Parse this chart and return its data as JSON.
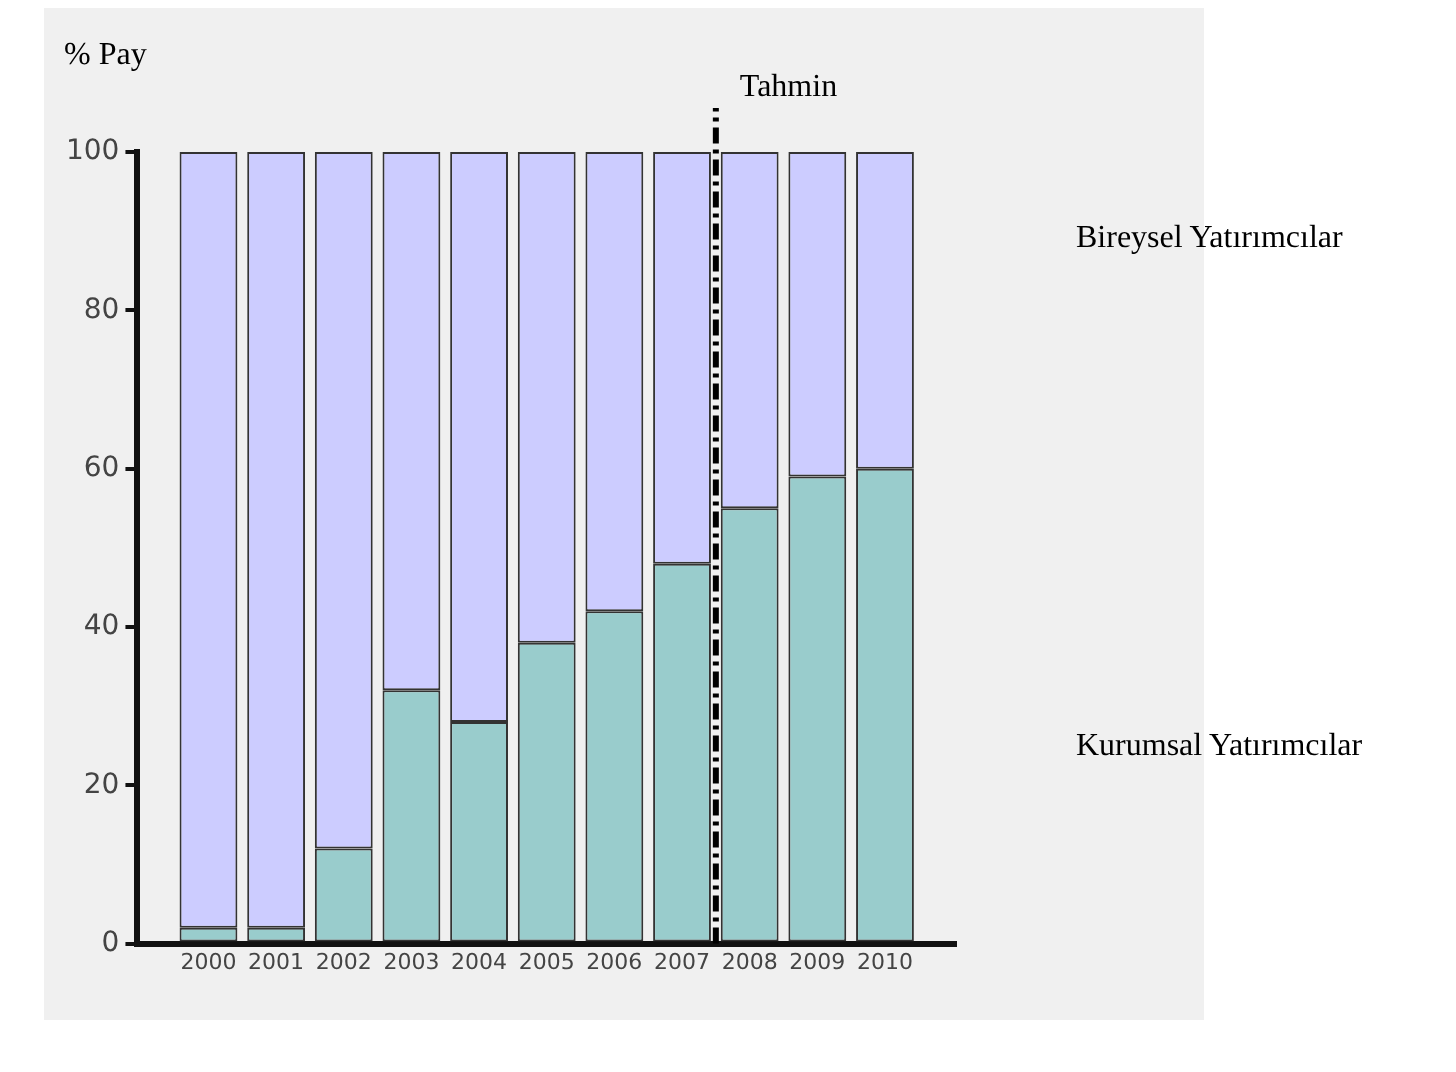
{
  "chart_data": {
    "type": "bar",
    "stacked": true,
    "ylabel": "% Pay",
    "x": [
      2000,
      2001,
      2002,
      2003,
      2004,
      2005,
      2006,
      2007,
      2008,
      2009,
      2010
    ],
    "xlim": [
      1999.5,
      2010.5
    ],
    "xticks": [
      2000,
      2001,
      2002,
      2003,
      2004,
      2005,
      2006,
      2007,
      2008,
      2009,
      2010
    ],
    "series": [
      {
        "name": "Kurumsal Yatırımcılar",
        "color": "#99cccc",
        "values": [
          2,
          2,
          12,
          32,
          28,
          38,
          42,
          48,
          55,
          59,
          60
        ]
      },
      {
        "name": "Bireysel Yatırımcılar",
        "color": "#ccccff",
        "values": [
          98,
          98,
          88,
          68,
          72,
          62,
          58,
          52,
          45,
          41,
          40
        ]
      }
    ],
    "ylim": [
      0,
      100
    ],
    "yticks": [
      0,
      20,
      40,
      60,
      80,
      100
    ],
    "grid": false,
    "legend": "right",
    "ref_lines": [
      {
        "axis": "x",
        "value": 2007.5,
        "label": "Tahmin",
        "line_style": "dashed"
      }
    ]
  }
}
